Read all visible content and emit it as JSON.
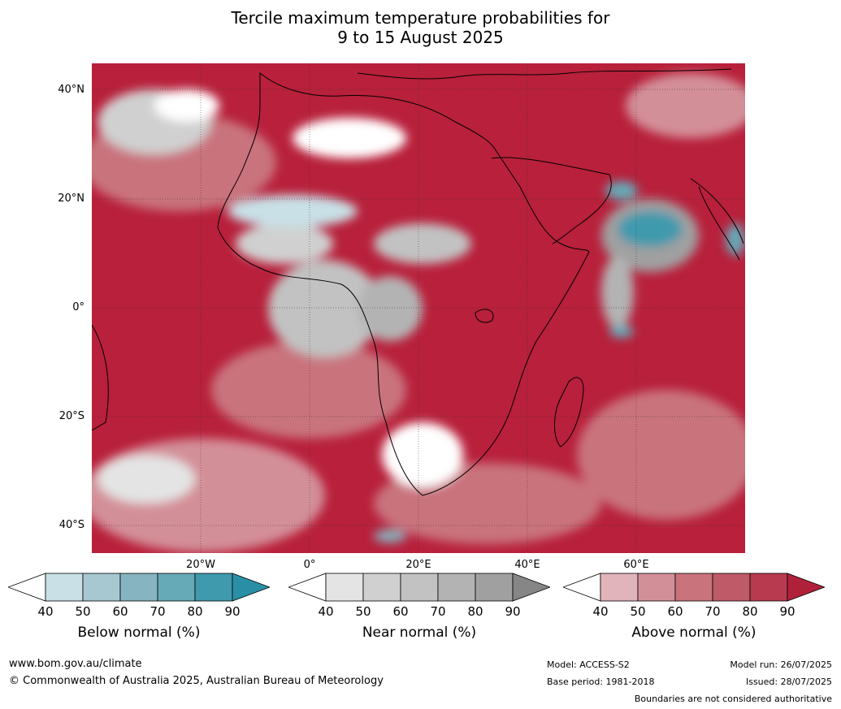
{
  "title": {
    "line1": "Tercile maximum temperature probabilities for",
    "line2": "9 to 15 August 2025"
  },
  "lat_labels": [
    "40°N",
    "20°N",
    "0°",
    "20°S",
    "40°S"
  ],
  "lon_labels": [
    "20°W",
    "0°",
    "20°E",
    "40°E",
    "60°E"
  ],
  "colorbars": [
    {
      "label": "Below normal (%)",
      "ticks": [
        "40",
        "50",
        "60",
        "70",
        "80",
        "90"
      ],
      "colors": [
        "#ffffff",
        "#c8e0e6",
        "#a7c8d0",
        "#86b4c0",
        "#66a9b7",
        "#3f9aae",
        "#2a8fa6"
      ]
    },
    {
      "label": "Near normal (%)",
      "ticks": [
        "40",
        "50",
        "60",
        "70",
        "80",
        "90"
      ],
      "colors": [
        "#ffffff",
        "#e4e4e4",
        "#d0d0d0",
        "#c2c2c2",
        "#b3b3b3",
        "#a0a0a0",
        "#868686"
      ]
    },
    {
      "label": "Above normal (%)",
      "ticks": [
        "40",
        "50",
        "60",
        "70",
        "80",
        "90"
      ],
      "colors": [
        "#ffffff",
        "#e0b4ba",
        "#d38f98",
        "#c9737d",
        "#bf5a68",
        "#b83a4f",
        "#b0203a"
      ]
    }
  ],
  "footer": {
    "url": "www.bom.gov.au/climate",
    "copyright": "© Commonwealth of Australia 2025, Australian Bureau of Meteorology",
    "model": "Model: ACCESS-S2",
    "base_period": "Base period: 1981-2018",
    "model_run": "Model run: 26/07/2025",
    "issued": "Issued: 28/07/2025",
    "disclaimer": "Boundaries are not considered authoritative"
  }
}
